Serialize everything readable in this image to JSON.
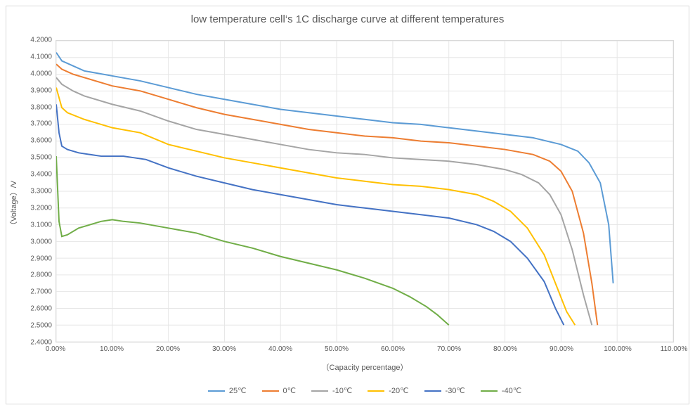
{
  "chart": {
    "type": "line",
    "title": "low temperature cell‘s 1C discharge curve at different temperatures",
    "xlabel": "（Capacity percentage）",
    "ylabel": "（Voltage）/V",
    "title_fontsize": 15,
    "label_fontsize": 11,
    "tick_fontsize": 10,
    "background_color": "#ffffff",
    "grid_color": "#e6e6e6",
    "border_color": "#d9d9d9",
    "text_color": "#595959",
    "line_width": 2,
    "xlim": [
      0,
      110
    ],
    "ylim": [
      2.4,
      4.2
    ],
    "xticks": [
      0,
      10,
      20,
      30,
      40,
      50,
      60,
      70,
      80,
      90,
      100,
      110
    ],
    "xtick_labels": [
      "0.00%",
      "10.00%",
      "20.00%",
      "30.00%",
      "40.00%",
      "50.00%",
      "60.00%",
      "70.00%",
      "80.00%",
      "90.00%",
      "100.00%",
      "110.00%"
    ],
    "yticks": [
      2.4,
      2.5,
      2.6,
      2.7,
      2.8,
      2.9,
      3.0,
      3.1,
      3.2,
      3.3,
      3.4,
      3.5,
      3.6,
      3.7,
      3.8,
      3.9,
      4.0,
      4.1,
      4.2
    ],
    "ytick_labels": [
      "2.4000",
      "2.5000",
      "2.6000",
      "2.7000",
      "2.8000",
      "2.9000",
      "3.0000",
      "3.1000",
      "3.2000",
      "3.3000",
      "3.4000",
      "3.5000",
      "3.6000",
      "3.7000",
      "3.8000",
      "3.9000",
      "4.0000",
      "4.1000",
      "4.2000"
    ],
    "legend_position": "bottom",
    "series": [
      {
        "name": "25℃",
        "color": "#5b9bd5",
        "x": [
          0,
          1,
          5,
          10,
          15,
          20,
          25,
          30,
          35,
          40,
          45,
          50,
          55,
          60,
          65,
          70,
          75,
          80,
          85,
          90,
          93,
          95,
          97,
          98.5,
          99.3
        ],
        "y": [
          4.13,
          4.08,
          4.02,
          3.99,
          3.96,
          3.92,
          3.88,
          3.85,
          3.82,
          3.79,
          3.77,
          3.75,
          3.73,
          3.71,
          3.7,
          3.68,
          3.66,
          3.64,
          3.62,
          3.58,
          3.54,
          3.47,
          3.35,
          3.1,
          2.75
        ]
      },
      {
        "name": "0℃",
        "color": "#ed7d31",
        "x": [
          0,
          1,
          3,
          5,
          10,
          15,
          20,
          25,
          30,
          35,
          40,
          45,
          50,
          55,
          60,
          65,
          70,
          75,
          80,
          85,
          88,
          90,
          92,
          94,
          95.5,
          96.5
        ],
        "y": [
          4.06,
          4.03,
          4.0,
          3.98,
          3.93,
          3.9,
          3.85,
          3.8,
          3.76,
          3.73,
          3.7,
          3.67,
          3.65,
          3.63,
          3.62,
          3.6,
          3.59,
          3.57,
          3.55,
          3.52,
          3.48,
          3.42,
          3.3,
          3.05,
          2.75,
          2.5
        ]
      },
      {
        "name": "-10℃",
        "color": "#a5a5a5",
        "x": [
          0,
          1,
          3,
          5,
          10,
          15,
          20,
          25,
          30,
          35,
          40,
          45,
          50,
          55,
          60,
          65,
          70,
          75,
          80,
          83,
          86,
          88,
          90,
          92,
          94,
          95.5
        ],
        "y": [
          3.98,
          3.94,
          3.9,
          3.87,
          3.82,
          3.78,
          3.72,
          3.67,
          3.64,
          3.61,
          3.58,
          3.55,
          3.53,
          3.52,
          3.5,
          3.49,
          3.48,
          3.46,
          3.43,
          3.4,
          3.35,
          3.28,
          3.16,
          2.95,
          2.68,
          2.5
        ]
      },
      {
        "name": "-20℃",
        "color": "#ffc000",
        "x": [
          0,
          1,
          2,
          5,
          10,
          15,
          20,
          25,
          30,
          35,
          40,
          45,
          50,
          55,
          60,
          65,
          70,
          75,
          78,
          81,
          84,
          87,
          89,
          91,
          92.5
        ],
        "y": [
          3.92,
          3.8,
          3.77,
          3.73,
          3.68,
          3.65,
          3.58,
          3.54,
          3.5,
          3.47,
          3.44,
          3.41,
          3.38,
          3.36,
          3.34,
          3.33,
          3.31,
          3.28,
          3.24,
          3.18,
          3.08,
          2.92,
          2.75,
          2.58,
          2.5
        ]
      },
      {
        "name": "-30℃",
        "color": "#4472c4",
        "x": [
          0,
          0.5,
          1,
          2,
          4,
          8,
          12,
          16,
          20,
          25,
          30,
          35,
          40,
          45,
          50,
          55,
          60,
          65,
          70,
          75,
          78,
          81,
          84,
          87,
          89,
          90.5
        ],
        "y": [
          3.82,
          3.65,
          3.57,
          3.55,
          3.53,
          3.51,
          3.51,
          3.49,
          3.44,
          3.39,
          3.35,
          3.31,
          3.28,
          3.25,
          3.22,
          3.2,
          3.18,
          3.16,
          3.14,
          3.1,
          3.06,
          3.0,
          2.9,
          2.76,
          2.6,
          2.5
        ]
      },
      {
        "name": "-40℃",
        "color": "#70ad47",
        "x": [
          0,
          0.5,
          1,
          2,
          4,
          6,
          8,
          10,
          12,
          15,
          20,
          25,
          30,
          35,
          40,
          45,
          50,
          55,
          60,
          63,
          66,
          68,
          70
        ],
        "y": [
          3.51,
          3.12,
          3.03,
          3.04,
          3.08,
          3.1,
          3.12,
          3.13,
          3.12,
          3.11,
          3.08,
          3.05,
          3.0,
          2.96,
          2.91,
          2.87,
          2.83,
          2.78,
          2.72,
          2.67,
          2.61,
          2.56,
          2.5
        ]
      }
    ]
  }
}
